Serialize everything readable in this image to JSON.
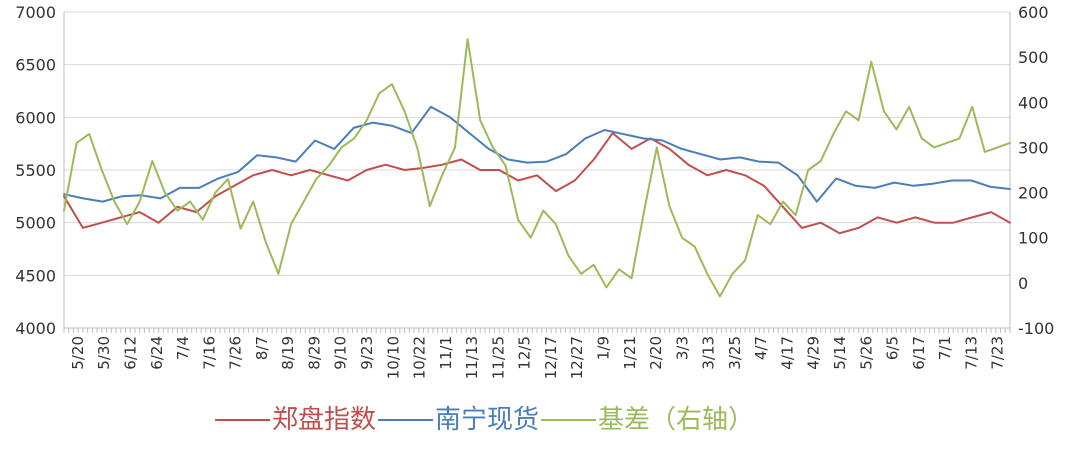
{
  "chart_data": {
    "type": "line",
    "title": "",
    "xlabel": "",
    "ylabel": "",
    "grid": true,
    "legend_position": "bottom",
    "y_left": {
      "min": 4000,
      "max": 7000,
      "ticks": [
        4000,
        4500,
        5000,
        5500,
        6000,
        6500,
        7000
      ]
    },
    "y_right": {
      "min": -100,
      "max": 600,
      "ticks": [
        -100,
        0,
        100,
        200,
        300,
        400,
        500,
        600
      ]
    },
    "x_ticks": [
      "5/20",
      "5/30",
      "6/12",
      "6/24",
      "7/4",
      "7/16",
      "7/26",
      "8/7",
      "8/19",
      "8/29",
      "9/10",
      "9/23",
      "10/10",
      "10/22",
      "11/1",
      "11/13",
      "11/25",
      "12/5",
      "12/17",
      "12/27",
      "1/9",
      "1/21",
      "2/20",
      "3/3",
      "3/13",
      "3/25",
      "4/7",
      "4/17",
      "4/29",
      "5/14",
      "5/26",
      "6/5",
      "6/17",
      "7/1",
      "7/13",
      "7/23"
    ],
    "series": [
      {
        "name": "郑盘指数",
        "color": "#c0504d",
        "axis": "left",
        "points": [
          [
            0,
            5250
          ],
          [
            1,
            4950
          ],
          [
            2,
            5000
          ],
          [
            3,
            5050
          ],
          [
            4,
            5100
          ],
          [
            5,
            5000
          ],
          [
            6,
            5150
          ],
          [
            7,
            5100
          ],
          [
            8,
            5250
          ],
          [
            9,
            5350
          ],
          [
            10,
            5450
          ],
          [
            11,
            5500
          ],
          [
            12,
            5450
          ],
          [
            13,
            5500
          ],
          [
            14,
            5450
          ],
          [
            15,
            5400
          ],
          [
            16,
            5500
          ],
          [
            17,
            5550
          ],
          [
            18,
            5500
          ],
          [
            19,
            5520
          ],
          [
            20,
            5550
          ],
          [
            21,
            5600
          ],
          [
            22,
            5500
          ],
          [
            23,
            5500
          ],
          [
            24,
            5400
          ],
          [
            25,
            5450
          ],
          [
            26,
            5300
          ],
          [
            27,
            5400
          ],
          [
            28,
            5600
          ],
          [
            29,
            5850
          ],
          [
            30,
            5700
          ],
          [
            31,
            5800
          ],
          [
            32,
            5700
          ],
          [
            33,
            5550
          ],
          [
            34,
            5450
          ],
          [
            35,
            5500
          ],
          [
            36,
            5450
          ],
          [
            37,
            5350
          ],
          [
            38,
            5150
          ],
          [
            39,
            4950
          ],
          [
            40,
            5000
          ],
          [
            41,
            4900
          ],
          [
            42,
            4950
          ],
          [
            43,
            5050
          ],
          [
            44,
            5000
          ],
          [
            45,
            5050
          ],
          [
            46,
            5000
          ],
          [
            47,
            5000
          ],
          [
            48,
            5050
          ],
          [
            49,
            5100
          ],
          [
            50,
            5000
          ]
        ]
      },
      {
        "name": "南宁现货",
        "color": "#4a7ebb",
        "axis": "left",
        "points": [
          [
            0,
            5270
          ],
          [
            1,
            5230
          ],
          [
            2,
            5200
          ],
          [
            3,
            5250
          ],
          [
            4,
            5260
          ],
          [
            5,
            5230
          ],
          [
            6,
            5330
          ],
          [
            7,
            5330
          ],
          [
            8,
            5420
          ],
          [
            9,
            5480
          ],
          [
            10,
            5640
          ],
          [
            11,
            5620
          ],
          [
            12,
            5580
          ],
          [
            13,
            5780
          ],
          [
            14,
            5700
          ],
          [
            15,
            5900
          ],
          [
            16,
            5950
          ],
          [
            17,
            5920
          ],
          [
            18,
            5850
          ],
          [
            19,
            6100
          ],
          [
            20,
            6000
          ],
          [
            21,
            5850
          ],
          [
            22,
            5700
          ],
          [
            23,
            5600
          ],
          [
            24,
            5570
          ],
          [
            25,
            5580
          ],
          [
            26,
            5650
          ],
          [
            27,
            5800
          ],
          [
            28,
            5880
          ],
          [
            29,
            5840
          ],
          [
            30,
            5800
          ],
          [
            31,
            5780
          ],
          [
            32,
            5700
          ],
          [
            33,
            5650
          ],
          [
            34,
            5600
          ],
          [
            35,
            5620
          ],
          [
            36,
            5580
          ],
          [
            37,
            5570
          ],
          [
            38,
            5450
          ],
          [
            39,
            5200
          ],
          [
            40,
            5420
          ],
          [
            41,
            5350
          ],
          [
            42,
            5330
          ],
          [
            43,
            5380
          ],
          [
            44,
            5350
          ],
          [
            45,
            5370
          ],
          [
            46,
            5400
          ],
          [
            47,
            5400
          ],
          [
            48,
            5340
          ],
          [
            49,
            5320
          ]
        ]
      },
      {
        "name": "基差（右轴）",
        "color": "#9bbb59",
        "axis": "right",
        "points": [
          [
            0,
            160
          ],
          [
            1,
            310
          ],
          [
            2,
            330
          ],
          [
            3,
            250
          ],
          [
            4,
            180
          ],
          [
            5,
            130
          ],
          [
            6,
            180
          ],
          [
            7,
            270
          ],
          [
            8,
            200
          ],
          [
            9,
            160
          ],
          [
            10,
            180
          ],
          [
            11,
            140
          ],
          [
            12,
            200
          ],
          [
            13,
            230
          ],
          [
            14,
            120
          ],
          [
            15,
            180
          ],
          [
            16,
            90
          ],
          [
            17,
            20
          ],
          [
            18,
            130
          ],
          [
            19,
            180
          ],
          [
            20,
            230
          ],
          [
            21,
            260
          ],
          [
            22,
            300
          ],
          [
            23,
            320
          ],
          [
            24,
            360
          ],
          [
            25,
            420
          ],
          [
            26,
            440
          ],
          [
            27,
            380
          ],
          [
            28,
            300
          ],
          [
            29,
            170
          ],
          [
            30,
            240
          ],
          [
            31,
            300
          ],
          [
            32,
            540
          ],
          [
            33,
            360
          ],
          [
            34,
            300
          ],
          [
            35,
            260
          ],
          [
            36,
            140
          ],
          [
            37,
            100
          ],
          [
            38,
            160
          ],
          [
            39,
            130
          ],
          [
            40,
            60
          ],
          [
            41,
            20
          ],
          [
            42,
            40
          ],
          [
            43,
            -10
          ],
          [
            44,
            30
          ],
          [
            45,
            10
          ],
          [
            46,
            160
          ],
          [
            47,
            300
          ],
          [
            48,
            170
          ],
          [
            49,
            100
          ],
          [
            50,
            80
          ],
          [
            51,
            20
          ],
          [
            52,
            -30
          ],
          [
            53,
            20
          ],
          [
            54,
            50
          ],
          [
            55,
            150
          ],
          [
            56,
            130
          ],
          [
            57,
            180
          ],
          [
            58,
            150
          ],
          [
            59,
            250
          ],
          [
            60,
            270
          ],
          [
            61,
            330
          ],
          [
            62,
            380
          ],
          [
            63,
            360
          ],
          [
            64,
            490
          ],
          [
            65,
            380
          ],
          [
            66,
            340
          ],
          [
            67,
            390
          ],
          [
            68,
            320
          ],
          [
            69,
            300
          ],
          [
            70,
            310
          ],
          [
            71,
            320
          ],
          [
            72,
            390
          ],
          [
            73,
            290
          ],
          [
            74,
            300
          ],
          [
            75,
            310
          ]
        ]
      }
    ]
  },
  "legend": {
    "items": [
      {
        "label": "郑盘指数",
        "color": "#c0504d"
      },
      {
        "label": "南宁现货",
        "color": "#4a7ebb"
      },
      {
        "label": "基差（右轴）",
        "color": "#9bbb59"
      }
    ]
  }
}
